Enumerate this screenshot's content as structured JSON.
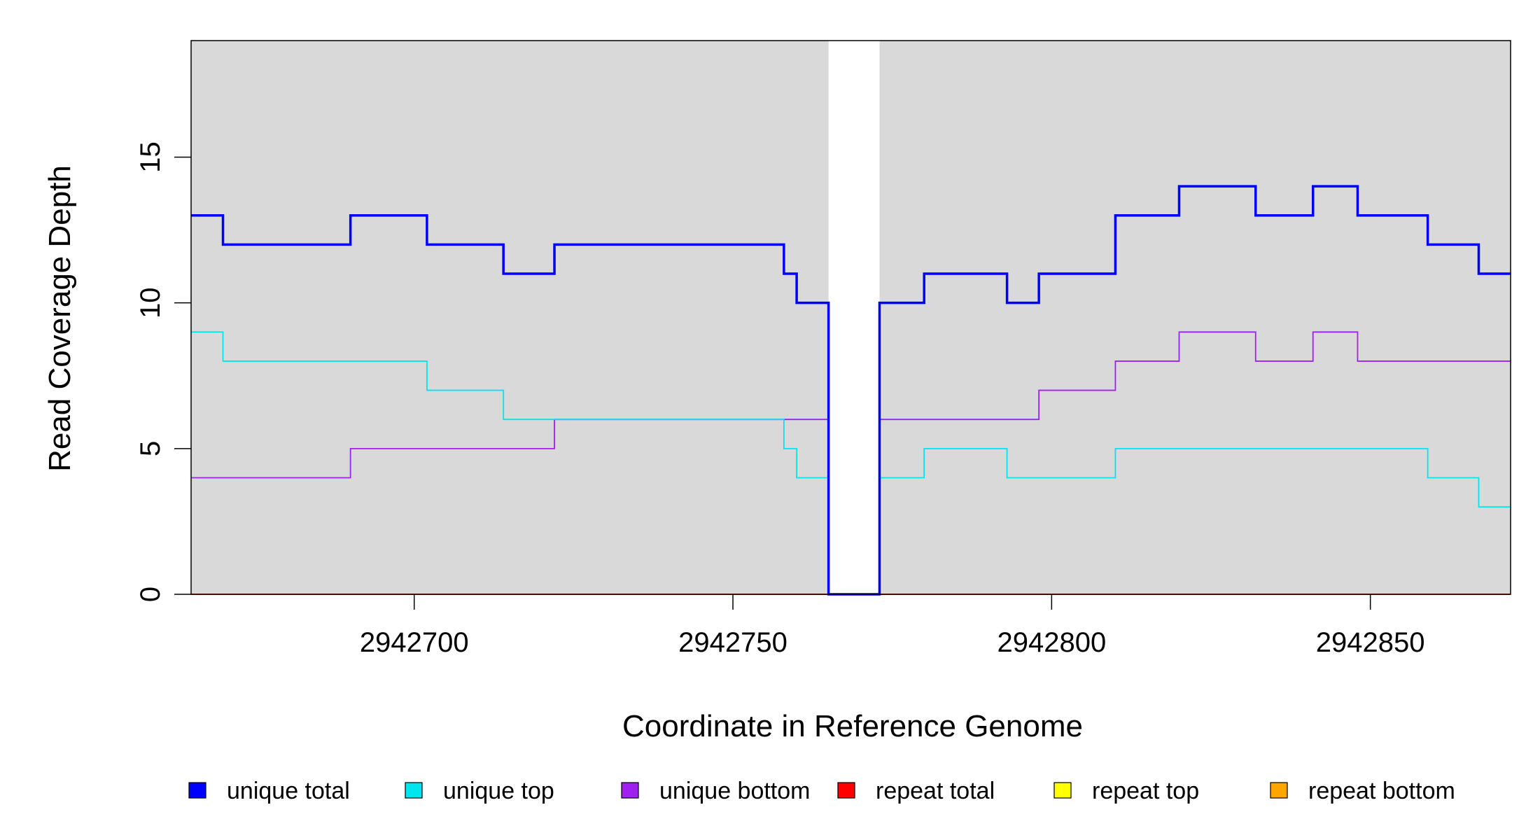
{
  "chart_data": {
    "type": "line",
    "xlabel": "Coordinate in Reference Genome",
    "ylabel": "Read Coverage Depth",
    "xlim": [
      2942665,
      2942872
    ],
    "ylim": [
      0,
      19
    ],
    "x_ticks": [
      2942700,
      2942750,
      2942800,
      2942850
    ],
    "x_tick_labels": [
      "2942700",
      "2942750",
      "2942800",
      "2942850"
    ],
    "y_ticks": [
      0,
      5,
      10,
      15
    ],
    "y_tick_labels": [
      "0",
      "5",
      "10",
      "15"
    ],
    "shaded_regions": [
      {
        "from": 2942665,
        "to": 2942765,
        "color": "#d9d9d9"
      },
      {
        "from": 2942773,
        "to": 2942872,
        "color": "#d9d9d9"
      }
    ],
    "legend_position": "bottom",
    "series": [
      {
        "name": "unique total",
        "color": "#0000ff",
        "style": "step",
        "points": [
          [
            2942665,
            13
          ],
          [
            2942670,
            12
          ],
          [
            2942690,
            13
          ],
          [
            2942702,
            12
          ],
          [
            2942714,
            11
          ],
          [
            2942722,
            12
          ],
          [
            2942758,
            11
          ],
          [
            2942760,
            10
          ],
          [
            2942765,
            0
          ],
          [
            2942773,
            10
          ],
          [
            2942780,
            11
          ],
          [
            2942793,
            10
          ],
          [
            2942798,
            11
          ],
          [
            2942810,
            13
          ],
          [
            2942820,
            14
          ],
          [
            2942832,
            13
          ],
          [
            2942841,
            14
          ],
          [
            2942848,
            13
          ],
          [
            2942859,
            12
          ],
          [
            2942867,
            11
          ],
          [
            2942872,
            11
          ]
        ]
      },
      {
        "name": "unique top",
        "color": "#00e5ee",
        "style": "step",
        "points": [
          [
            2942665,
            9
          ],
          [
            2942670,
            8
          ],
          [
            2942702,
            7
          ],
          [
            2942714,
            6
          ],
          [
            2942758,
            5
          ],
          [
            2942760,
            4
          ],
          [
            2942765,
            0
          ],
          [
            2942773,
            4
          ],
          [
            2942780,
            5
          ],
          [
            2942793,
            4
          ],
          [
            2942810,
            5
          ],
          [
            2942859,
            4
          ],
          [
            2942867,
            3
          ],
          [
            2942872,
            3
          ]
        ]
      },
      {
        "name": "unique bottom",
        "color": "#a020f0",
        "style": "step",
        "points": [
          [
            2942665,
            4
          ],
          [
            2942690,
            5
          ],
          [
            2942722,
            6
          ],
          [
            2942765,
            0
          ],
          [
            2942773,
            6
          ],
          [
            2942798,
            7
          ],
          [
            2942810,
            8
          ],
          [
            2942820,
            9
          ],
          [
            2942832,
            8
          ],
          [
            2942841,
            9
          ],
          [
            2942848,
            8
          ],
          [
            2942872,
            8
          ]
        ]
      },
      {
        "name": "repeat total",
        "color": "#ff0000",
        "style": "step",
        "points": [
          [
            2942665,
            0
          ],
          [
            2942872,
            0
          ]
        ]
      },
      {
        "name": "repeat top",
        "color": "#ffff00",
        "style": "step",
        "points": [
          [
            2942665,
            0
          ],
          [
            2942872,
            0
          ]
        ]
      },
      {
        "name": "repeat bottom",
        "color": "#ffa500",
        "style": "step",
        "points": [
          [
            2942665,
            0
          ],
          [
            2942872,
            0
          ]
        ]
      }
    ]
  }
}
